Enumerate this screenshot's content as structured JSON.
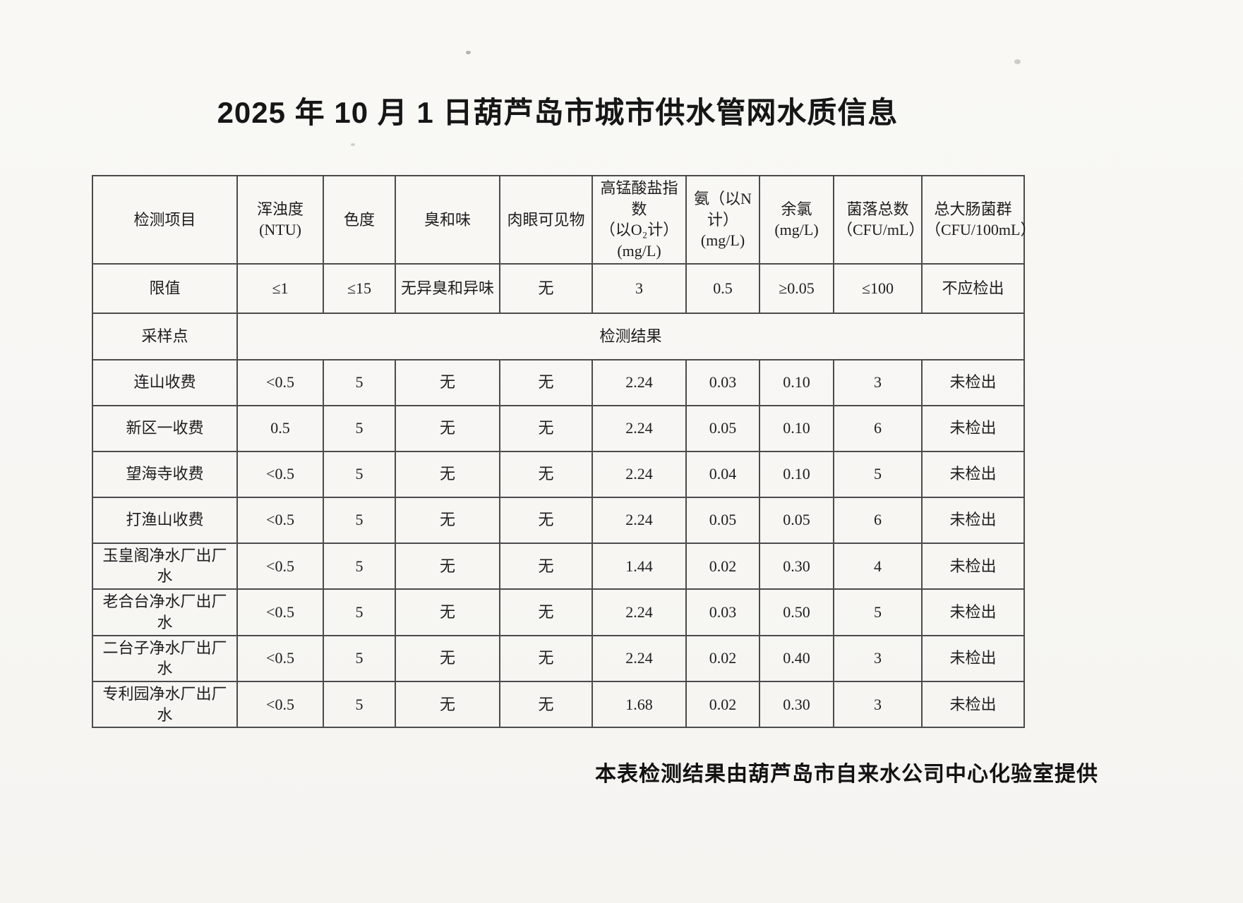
{
  "page": {
    "title": "2025 年 10 月 1 日葫芦岛市城市供水管网水质信息",
    "footer": "本表检测结果由葫芦岛市自来水公司中心化验室提供"
  },
  "table": {
    "headers": [
      "检测项目",
      "浑浊度(NTU)",
      "色度",
      "臭和味",
      "肉眼可见物",
      "高锰酸盐指数\n（以O₂计）\n(mg/L)",
      "氨（以N计）\n(mg/L)",
      "余氯\n(mg/L)",
      "菌落总数\n（CFU/mL）",
      "总大肠菌群\n（CFU/100mL）"
    ],
    "limit_row": {
      "label": "限值",
      "values": [
        "≤1",
        "≤15",
        "无异臭和异味",
        "无",
        "3",
        "0.5",
        "≥0.05",
        "≤100",
        "不应检出"
      ]
    },
    "section_row": {
      "label": "采样点",
      "merged_value": "检测结果"
    },
    "rows": [
      {
        "name": "连山收费",
        "values": [
          "<0.5",
          "5",
          "无",
          "无",
          "2.24",
          "0.03",
          "0.10",
          "3",
          "未检出"
        ]
      },
      {
        "name": "新区一收费",
        "values": [
          "0.5",
          "5",
          "无",
          "无",
          "2.24",
          "0.05",
          "0.10",
          "6",
          "未检出"
        ]
      },
      {
        "name": "望海寺收费",
        "values": [
          "<0.5",
          "5",
          "无",
          "无",
          "2.24",
          "0.04",
          "0.10",
          "5",
          "未检出"
        ]
      },
      {
        "name": "打渔山收费",
        "values": [
          "<0.5",
          "5",
          "无",
          "无",
          "2.24",
          "0.05",
          "0.05",
          "6",
          "未检出"
        ]
      },
      {
        "name": "玉皇阁净水厂出厂水",
        "values": [
          "<0.5",
          "5",
          "无",
          "无",
          "1.44",
          "0.02",
          "0.30",
          "4",
          "未检出"
        ]
      },
      {
        "name": "老合台净水厂出厂水",
        "values": [
          "<0.5",
          "5",
          "无",
          "无",
          "2.24",
          "0.03",
          "0.50",
          "5",
          "未检出"
        ]
      },
      {
        "name": "二台子净水厂出厂水",
        "values": [
          "<0.5",
          "5",
          "无",
          "无",
          "2.24",
          "0.02",
          "0.40",
          "3",
          "未检出"
        ]
      },
      {
        "name": "专利园净水厂出厂水",
        "values": [
          "<0.5",
          "5",
          "无",
          "无",
          "1.68",
          "0.02",
          "0.30",
          "3",
          "未检出"
        ]
      }
    ]
  }
}
